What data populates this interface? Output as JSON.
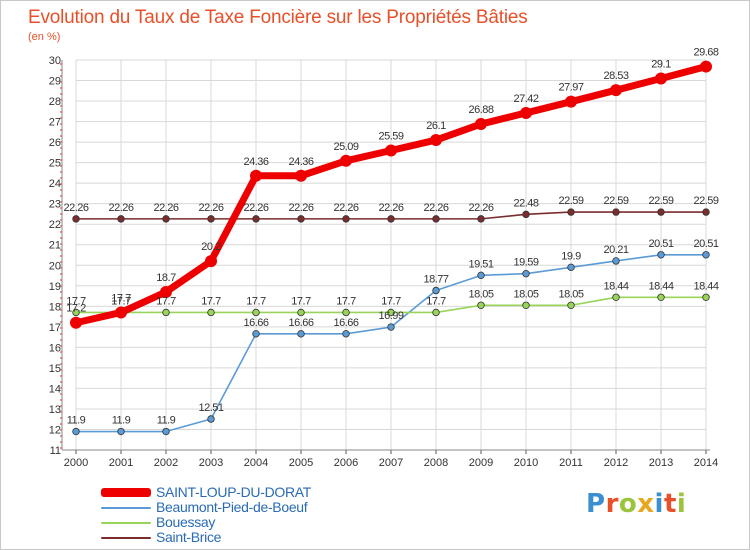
{
  "title": "Evolution du Taux de Taxe Foncière sur les Propriétés Bâties",
  "unit_label": "(en %)",
  "logo": {
    "text": "Proxiti",
    "colors": [
      "#3b8fd0",
      "#e8502a",
      "#9ac43c",
      "#e8a81e",
      "#3b8fd0",
      "#e8502a",
      "#9ac43c"
    ]
  },
  "chart_data": {
    "type": "line",
    "title": "Evolution du Taux de Taxe Foncière sur les Propriétés Bâties",
    "ylabel": "(en %)",
    "xlabel": "",
    "ylim": [
      11,
      30
    ],
    "y_ticks": [
      11,
      12,
      13,
      14,
      15,
      16,
      17,
      18,
      19,
      20,
      21,
      22,
      23,
      24,
      25,
      26,
      27,
      28,
      29,
      30
    ],
    "grid": true,
    "legend_position": "bottom-left",
    "x": [
      "2000",
      "2001",
      "2002",
      "2003",
      "2004",
      "2005",
      "2006",
      "2007",
      "2008",
      "2009",
      "2010",
      "2011",
      "2012",
      "2013",
      "2014"
    ],
    "series": [
      {
        "name": "SAINT-LOUP-DU-DORAT",
        "color": "#ee0000",
        "emphasis": true,
        "values": [
          17.2,
          17.7,
          18.7,
          20.2,
          24.36,
          24.36,
          25.09,
          25.59,
          26.1,
          26.88,
          27.42,
          27.97,
          28.53,
          29.1,
          29.68
        ],
        "labels": [
          "17.2",
          "17.7",
          "18.7",
          "20.2",
          "24.36",
          "24.36",
          "25.09",
          "25.59",
          "26.1",
          "26.88",
          "27.42",
          "27.97",
          "28.53",
          "29.1",
          "29.68"
        ]
      },
      {
        "name": "Beaumont-Pied-de-Boeuf",
        "color": "#5b9bd5",
        "emphasis": false,
        "values": [
          11.9,
          11.9,
          11.9,
          12.51,
          16.66,
          16.66,
          16.66,
          16.99,
          18.77,
          19.51,
          19.59,
          19.9,
          20.21,
          20.51,
          20.51
        ],
        "labels": [
          "11.9",
          "11.9",
          "11.9",
          "12.51",
          "16.66",
          "16.66",
          "16.66",
          "16.99",
          "18.77",
          "19.51",
          "19.59",
          "19.9",
          "20.21",
          "20.51",
          "20.51"
        ]
      },
      {
        "name": "Bouessay",
        "color": "#99d45a",
        "emphasis": false,
        "values": [
          17.7,
          17.7,
          17.7,
          17.7,
          17.7,
          17.7,
          17.7,
          17.7,
          17.7,
          18.05,
          18.05,
          18.05,
          18.44,
          18.44,
          18.44
        ],
        "labels": [
          "17.7",
          "17.7",
          "17.7",
          "17.7",
          "17.7",
          "17.7",
          "17.7",
          "17.7",
          "17.7",
          "18.05",
          "18.05",
          "18.05",
          "18.44",
          "18.44",
          "18.44"
        ]
      },
      {
        "name": "Saint-Brice",
        "color": "#7a2d2d",
        "emphasis": false,
        "values": [
          22.26,
          22.26,
          22.26,
          22.26,
          22.26,
          22.26,
          22.26,
          22.26,
          22.26,
          22.26,
          22.48,
          22.59,
          22.59,
          22.59,
          22.59
        ],
        "labels": [
          "22.26",
          "22.26",
          "22.26",
          "22.26",
          "22.26",
          "22.26",
          "22.26",
          "22.26",
          "22.26",
          "22.26",
          "22.48",
          "22.59",
          "22.59",
          "22.59",
          "22.59"
        ]
      }
    ]
  }
}
